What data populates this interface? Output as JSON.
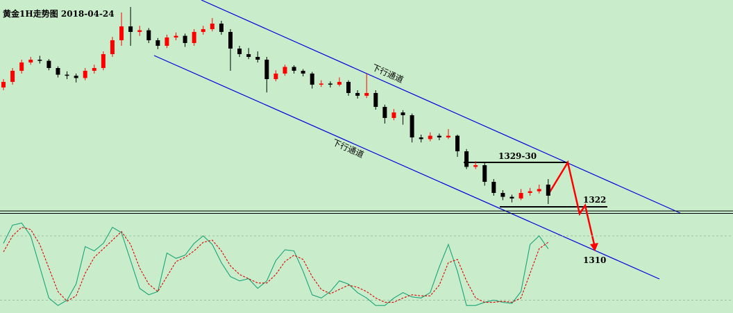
{
  "chart_data": [
    {
      "type": "candlestick",
      "title": "黄金1H走势图  2018-04-24",
      "ylim": [
        1321,
        1359.25
      ],
      "up_color": "#ff0000",
      "down_color": "#000000",
      "ohlc": [
        [
          1343.5,
          1345,
          1343,
          1344.5
        ],
        [
          1344.5,
          1347,
          1344,
          1346.5
        ],
        [
          1346.5,
          1348.5,
          1346,
          1348
        ],
        [
          1348,
          1349,
          1347.6,
          1348.5
        ],
        [
          1348.5,
          1349.2,
          1347.8,
          1348.3
        ],
        [
          1348.3,
          1348.6,
          1346.6,
          1347
        ],
        [
          1347,
          1347.3,
          1345.3,
          1345.8
        ],
        [
          1345.8,
          1346.4,
          1345,
          1345.6
        ],
        [
          1345.6,
          1346,
          1344.4,
          1345.2
        ],
        [
          1345.2,
          1347,
          1344.8,
          1346.5
        ],
        [
          1346.5,
          1347.6,
          1346,
          1347
        ],
        [
          1347,
          1350,
          1346.6,
          1349.5
        ],
        [
          1349.5,
          1352.6,
          1349,
          1352
        ],
        [
          1352,
          1357,
          1351,
          1354.5
        ],
        [
          1354.5,
          1358,
          1351,
          1353.5
        ],
        [
          1353.5,
          1354.6,
          1352.8,
          1353.8
        ],
        [
          1353.8,
          1354.2,
          1351.5,
          1352
        ],
        [
          1352,
          1352.4,
          1350.4,
          1351
        ],
        [
          1351,
          1353,
          1350.6,
          1352.5
        ],
        [
          1352.5,
          1353.4,
          1352,
          1352.8
        ],
        [
          1352.8,
          1353.2,
          1350.8,
          1351.5
        ],
        [
          1351.5,
          1354,
          1351,
          1353.5
        ],
        [
          1353.5,
          1354.6,
          1353,
          1354
        ],
        [
          1354,
          1356,
          1353.6,
          1355
        ],
        [
          1355,
          1355.5,
          1353,
          1353.5
        ],
        [
          1353.5,
          1354,
          1346.5,
          1350.5
        ],
        [
          1350.5,
          1351,
          1349,
          1349.5
        ],
        [
          1349.5,
          1350.6,
          1348.6,
          1349
        ],
        [
          1349,
          1350,
          1348,
          1348.5
        ],
        [
          1348.5,
          1349,
          1342.6,
          1345
        ],
        [
          1345,
          1346.6,
          1344.6,
          1346
        ],
        [
          1346,
          1347.6,
          1345.6,
          1347.2
        ],
        [
          1347.2,
          1347.5,
          1346,
          1346.5
        ],
        [
          1346.5,
          1346.8,
          1345.5,
          1346
        ],
        [
          1346,
          1346.3,
          1343.3,
          1344
        ],
        [
          1344,
          1344.8,
          1343.6,
          1344.2
        ],
        [
          1344.2,
          1344.6,
          1343.5,
          1344
        ],
        [
          1344,
          1345.3,
          1343.7,
          1344.5
        ],
        [
          1344.5,
          1344.8,
          1342,
          1342.5
        ],
        [
          1342.5,
          1343,
          1341.5,
          1342
        ],
        [
          1342,
          1346,
          1341.6,
          1342.5
        ],
        [
          1342.5,
          1343,
          1339.5,
          1340
        ],
        [
          1340,
          1340.4,
          1337,
          1338
        ],
        [
          1338,
          1339.6,
          1337.6,
          1339
        ],
        [
          1339,
          1339.4,
          1336.8,
          1338.5
        ],
        [
          1338.5,
          1338.8,
          1333.6,
          1334.5
        ],
        [
          1334.5,
          1335,
          1333.6,
          1334.2
        ],
        [
          1334.2,
          1335.4,
          1333.8,
          1334.8
        ],
        [
          1334.8,
          1335.2,
          1334,
          1334.5
        ],
        [
          1334.5,
          1336,
          1334.2,
          1334.8
        ],
        [
          1334.8,
          1335,
          1331,
          1332
        ],
        [
          1332,
          1332.4,
          1328.8,
          1329.2
        ],
        [
          1329.2,
          1330.2,
          1328.8,
          1329.5
        ],
        [
          1329.5,
          1330,
          1325.8,
          1326.5
        ],
        [
          1326.5,
          1327,
          1324,
          1324.5
        ],
        [
          1324.5,
          1325,
          1323.2,
          1323.8
        ],
        [
          1323.8,
          1324.2,
          1322.8,
          1323.5
        ],
        [
          1323.5,
          1325.2,
          1323.2,
          1324.5
        ],
        [
          1324.5,
          1325.4,
          1324,
          1324.8
        ],
        [
          1324.8,
          1326,
          1324.4,
          1325.2
        ],
        [
          1326,
          1327,
          1322.5,
          1324
        ]
      ],
      "annotations": [
        "下行通道",
        "下行通道",
        "1329-30",
        "1322",
        "1310"
      ]
    },
    {
      "type": "line",
      "ylim": [
        8,
        100
      ],
      "grid_levels": [
        20,
        80
      ],
      "series": [
        {
          "color": "#1aa37a",
          "values": [
            73,
            90,
            92,
            80,
            51,
            22,
            15,
            20,
            35,
            70,
            66,
            73,
            88,
            83,
            57,
            31,
            25,
            28,
            64,
            59,
            62,
            73,
            80,
            72,
            55,
            42,
            38,
            40,
            31,
            38,
            57,
            67,
            66,
            47,
            25,
            22,
            28,
            38,
            35,
            27,
            22,
            15,
            15,
            22,
            27,
            23,
            22,
            27,
            51,
            72,
            47,
            15,
            15,
            18,
            20,
            18,
            17,
            28,
            72,
            80,
            68
          ]
        },
        {
          "color": "#e00000",
          "dashed": true,
          "values": [
            65,
            80,
            88,
            86,
            72,
            50,
            28,
            19,
            24,
            45,
            60,
            68,
            76,
            84,
            72,
            50,
            35,
            28,
            42,
            56,
            60,
            66,
            74,
            76,
            66,
            52,
            44,
            40,
            36,
            36,
            44,
            56,
            62,
            58,
            42,
            30,
            26,
            30,
            34,
            32,
            28,
            22,
            18,
            18,
            22,
            25,
            24,
            24,
            34,
            55,
            58,
            38,
            22,
            18,
            18,
            19,
            18,
            22,
            45,
            68,
            74
          ]
        }
      ]
    }
  ]
}
